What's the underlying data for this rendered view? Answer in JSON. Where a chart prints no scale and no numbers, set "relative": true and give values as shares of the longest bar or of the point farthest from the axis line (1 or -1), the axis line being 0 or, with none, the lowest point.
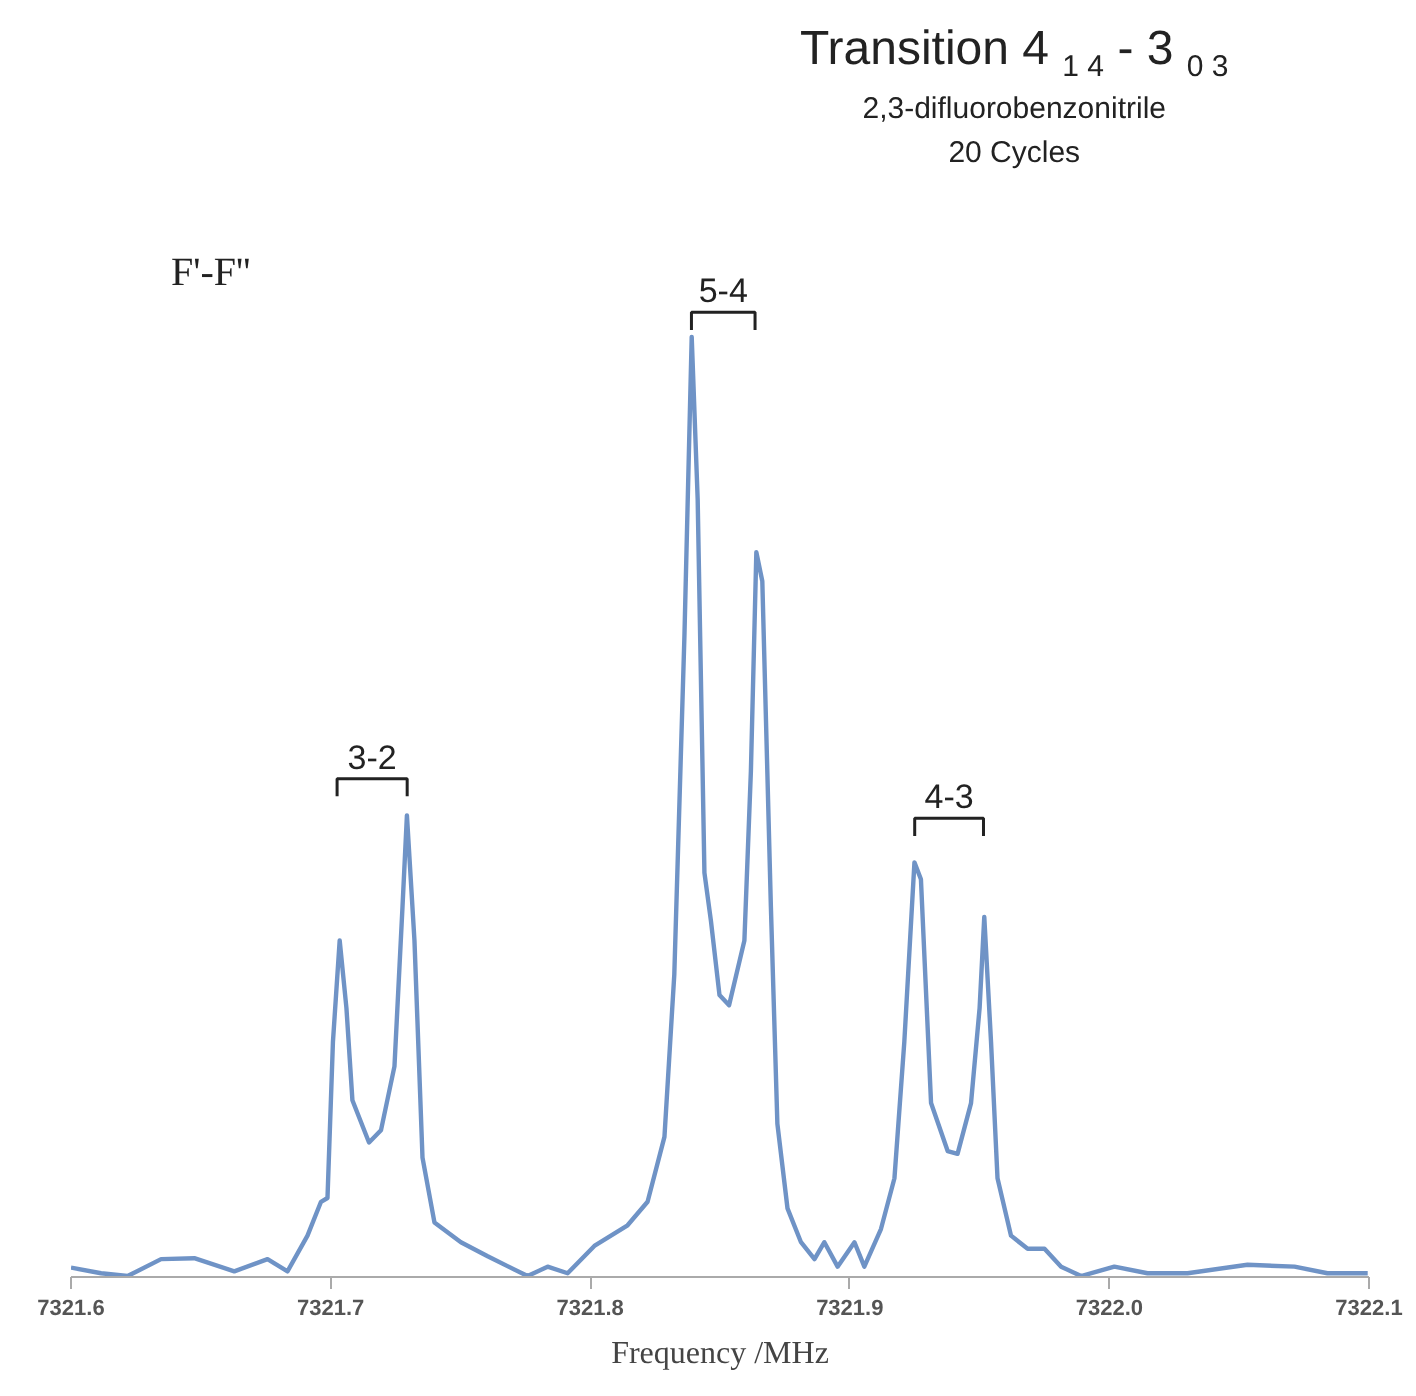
{
  "chart_data": {
    "type": "line",
    "title": "Transition 4 $_{1 4}$ - 3 $_{0 3}$",
    "subtitle": "2,3-difluorobenzonitrile\n20 Cycles",
    "xlabel": "Frequency /MHz",
    "relative": true,
    "grid": false,
    "tick_labels": "x",
    "marker": "none",
    "line_style": "solid",
    "xlim": [
      7321.6,
      7322.1
    ],
    "xticks": [
      7321.6,
      7321.7,
      7321.8,
      7321.9,
      {
        "value": 7322.0,
        "label": "7322.0"
      },
      7322.1
    ],
    "annotations": [
      "F'-F''",
      "3-2",
      "5-4",
      "4-3"
    ],
    "x": [
      7321.6,
      7321.6116,
      7321.6218,
      7321.6347,
      7321.6475,
      7321.6629,
      7321.6757,
      7321.6834,
      7321.6911,
      7321.6963,
      7321.6988,
      7321.7009,
      7321.7035,
      7321.7061,
      7321.7084,
      7321.7148,
      7321.7194,
      7321.7246,
      7321.7277,
      7321.7294,
      7321.7323,
      7321.7354,
      7321.74,
      7321.7502,
      7321.7605,
      7321.7759,
      7321.7836,
      7321.7913,
      7321.8016,
      7321.8144,
      7321.8221,
      7321.8286,
      7321.8324,
      7321.8363,
      7321.8391,
      7321.8414,
      7321.844,
      7321.8465,
      7321.8498,
      7321.8535,
      7321.8594,
      7321.8619,
      7321.864,
      7321.8663,
      7321.8696,
      7321.8721,
      7321.876,
      7321.8812,
      7321.8864,
      7321.8902,
      7321.8953,
      7321.9018,
      7321.9056,
      7321.912,
      7321.9172,
      7321.921,
      7321.9249,
      7321.9274,
      7321.9313,
      7321.9377,
      7321.9415,
      7321.9467,
      7321.95,
      7321.9518,
      7321.9544,
      7321.9569,
      7321.9621,
      7321.9685,
      7321.975,
      7321.9814,
      7321.9891,
      7322.0019,
      7322.0147,
      7322.0301,
      7322.0532,
      7322.0713,
      7322.084,
      7322.0995
    ],
    "series": [
      {
        "color": "#6f93c6",
        "values": [
          0.01,
          0.004,
          0.001,
          0.019,
          0.02,
          0.006,
          0.019,
          0.006,
          0.044,
          0.08,
          0.084,
          0.25,
          0.358,
          0.286,
          0.188,
          0.143,
          0.156,
          0.224,
          0.394,
          0.491,
          0.358,
          0.127,
          0.058,
          0.037,
          0.022,
          0.001,
          0.011,
          0.004,
          0.033,
          0.055,
          0.08,
          0.149,
          0.322,
          0.682,
          1.0,
          0.827,
          0.43,
          0.379,
          0.3,
          0.289,
          0.358,
          0.538,
          0.771,
          0.74,
          0.394,
          0.163,
          0.073,
          0.037,
          0.019,
          0.037,
          0.011,
          0.037,
          0.011,
          0.051,
          0.105,
          0.25,
          0.441,
          0.423,
          0.185,
          0.134,
          0.131,
          0.185,
          0.286,
          0.383,
          0.25,
          0.105,
          0.044,
          0.03,
          0.03,
          0.011,
          0.001,
          0.011,
          0.004,
          0.004,
          0.013,
          0.011,
          0.004,
          0.004
        ]
      }
    ]
  }
}
